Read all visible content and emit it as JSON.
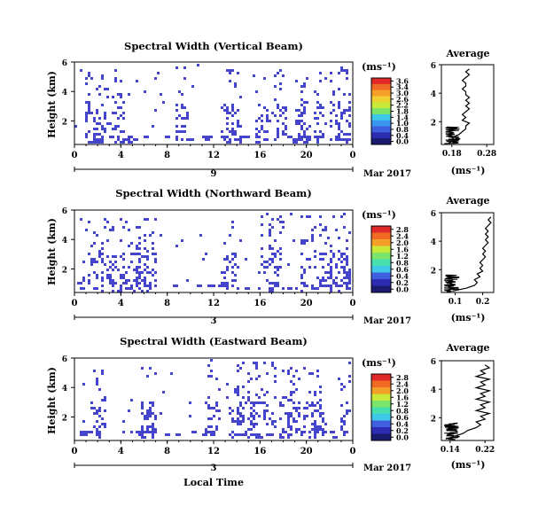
{
  "figure": {
    "xlabel": "Local Time",
    "date_label": "Mar 2017",
    "height_label": "Height (km)",
    "avg_title": "Average",
    "cb_unit": "(ms⁻¹)",
    "avg_xlabel": "(ms⁻¹)",
    "pixel_color": "#4444cc",
    "cmap": [
      "#1a1a6e",
      "#2c2cb0",
      "#3f5fe0",
      "#3a96ee",
      "#40c8e8",
      "#46e0b0",
      "#7ce46a",
      "#c8e83a",
      "#f0d030",
      "#f4a028",
      "#f06a24",
      "#e02828"
    ]
  },
  "chart_data": [
    {
      "type": "heatmap",
      "title": "Spectral Width (Vertical Beam)",
      "xlabel": "Local Time",
      "ylabel": "Height (km)",
      "x_ticks": [
        "0",
        "4",
        "8",
        "12",
        "16",
        "20",
        "0"
      ],
      "y_ticks": [
        "6",
        "4",
        "2"
      ],
      "xlim": [
        0,
        24
      ],
      "ylim": [
        0.4,
        6.0
      ],
      "day_label": "9",
      "date": "Mar 2017",
      "colorbar": {
        "label": "(ms⁻¹)",
        "ticks": [
          "3.6",
          "3.4",
          "3.0",
          "2.6",
          "2.2",
          "1.8",
          "1.4",
          "1.0",
          "0.8",
          "0.4",
          "0.0"
        ]
      },
      "activity_columns_h": [
        1.3,
        2.1,
        3.6,
        9.2,
        13.2,
        13.7,
        16.0,
        17.5,
        19.5,
        21.0,
        22.5,
        23.3
      ],
      "average": {
        "title": "Average",
        "xlabel": "(ms⁻¹)",
        "x_ticks": [
          "0.18",
          "0.28"
        ],
        "xlim": [
          0.15,
          0.3
        ],
        "y_ticks": [
          "6",
          "4",
          "2"
        ],
        "ylim": [
          0.4,
          6.0
        ],
        "heights": [
          0.5,
          0.7,
          0.9,
          1.1,
          1.3,
          1.5,
          1.7,
          1.9,
          2.1,
          2.3,
          2.5,
          2.7,
          2.9,
          3.1,
          3.3,
          3.5,
          3.7,
          3.9,
          4.1,
          4.3,
          4.5,
          4.7,
          4.9,
          5.1,
          5.3,
          5.5,
          5.7
        ],
        "values": [
          0.17,
          0.19,
          0.18,
          0.2,
          0.21,
          0.22,
          0.22,
          0.23,
          0.21,
          0.22,
          0.21,
          0.22,
          0.23,
          0.22,
          0.23,
          0.22,
          0.23,
          0.22,
          0.22,
          0.21,
          0.22,
          0.22,
          0.21,
          0.22,
          0.23,
          0.22,
          0.23
        ]
      }
    },
    {
      "type": "heatmap",
      "title": "Spectral Width (Northward Beam)",
      "xlabel": "Local Time",
      "ylabel": "Height (km)",
      "x_ticks": [
        "0",
        "4",
        "8",
        "12",
        "16",
        "20",
        "0"
      ],
      "y_ticks": [
        "6",
        "4",
        "2"
      ],
      "xlim": [
        0,
        24
      ],
      "ylim": [
        0.4,
        6.0
      ],
      "day_label": "3",
      "date": "Mar 2017",
      "colorbar": {
        "label": "(ms⁻¹)",
        "ticks": [
          "2.8",
          "2.4",
          "2.0",
          "1.6",
          "1.2",
          "0.8",
          "0.6",
          "0.4",
          "0.2",
          "0.0"
        ]
      },
      "activity_columns_h": [
        1.3,
        2.6,
        3.6,
        5.0,
        5.8,
        6.4,
        13.4,
        16.5,
        17.3,
        20.0,
        21.5,
        22.6,
        23.5
      ],
      "average": {
        "title": "Average",
        "xlabel": "(ms⁻¹)",
        "x_ticks": [
          "0.1",
          "0.2"
        ],
        "xlim": [
          0.05,
          0.24
        ],
        "y_ticks": [
          "6",
          "4",
          "2"
        ],
        "ylim": [
          0.4,
          6.0
        ],
        "heights": [
          0.5,
          0.7,
          0.9,
          1.1,
          1.3,
          1.5,
          1.7,
          1.9,
          2.1,
          2.3,
          2.5,
          2.7,
          2.9,
          3.1,
          3.3,
          3.5,
          3.7,
          3.9,
          4.1,
          4.3,
          4.5,
          4.7,
          4.9,
          5.1,
          5.3,
          5.5,
          5.7
        ],
        "values": [
          0.09,
          0.14,
          0.17,
          0.18,
          0.17,
          0.19,
          0.18,
          0.2,
          0.19,
          0.2,
          0.19,
          0.2,
          0.21,
          0.2,
          0.21,
          0.2,
          0.21,
          0.22,
          0.21,
          0.22,
          0.21,
          0.22,
          0.21,
          0.22,
          0.23,
          0.22,
          0.23
        ]
      }
    },
    {
      "type": "heatmap",
      "title": "Spectral Width (Eastward Beam)",
      "xlabel": "Local Time",
      "ylabel": "Height (km)",
      "x_ticks": [
        "0",
        "4",
        "8",
        "12",
        "16",
        "20",
        "0"
      ],
      "y_ticks": [
        "6",
        "4",
        "2"
      ],
      "xlim": [
        0,
        24
      ],
      "ylim": [
        0.4,
        6.0
      ],
      "day_label": "3",
      "date": "Mar 2017",
      "colorbar": {
        "label": "(ms⁻¹)",
        "ticks": [
          "2.8",
          "2.4",
          "2.0",
          "1.6",
          "1.2",
          "0.8",
          "0.6",
          "0.4",
          "0.2",
          "0.0"
        ]
      },
      "activity_columns_h": [
        2.0,
        6.3,
        11.8,
        13.8,
        14.5,
        15.6,
        16.8,
        18.2,
        18.8,
        20.2,
        20.9,
        23.5
      ],
      "average": {
        "title": "Average",
        "xlabel": "(ms⁻¹)",
        "x_ticks": [
          "0.14",
          "0.22"
        ],
        "xlim": [
          0.12,
          0.24
        ],
        "y_ticks": [
          "6",
          "4",
          "2"
        ],
        "ylim": [
          0.4,
          6.0
        ],
        "heights": [
          0.5,
          0.7,
          0.9,
          1.1,
          1.3,
          1.5,
          1.7,
          1.9,
          2.1,
          2.3,
          2.5,
          2.7,
          2.9,
          3.1,
          3.3,
          3.5,
          3.7,
          3.9,
          4.1,
          4.3,
          4.5,
          4.7,
          4.9,
          5.1,
          5.3,
          5.5,
          5.7
        ],
        "values": [
          0.13,
          0.15,
          0.17,
          0.18,
          0.2,
          0.21,
          0.2,
          0.22,
          0.21,
          0.23,
          0.2,
          0.22,
          0.21,
          0.23,
          0.2,
          0.22,
          0.21,
          0.23,
          0.2,
          0.22,
          0.21,
          0.23,
          0.2,
          0.22,
          0.21,
          0.23,
          0.22
        ]
      }
    }
  ]
}
